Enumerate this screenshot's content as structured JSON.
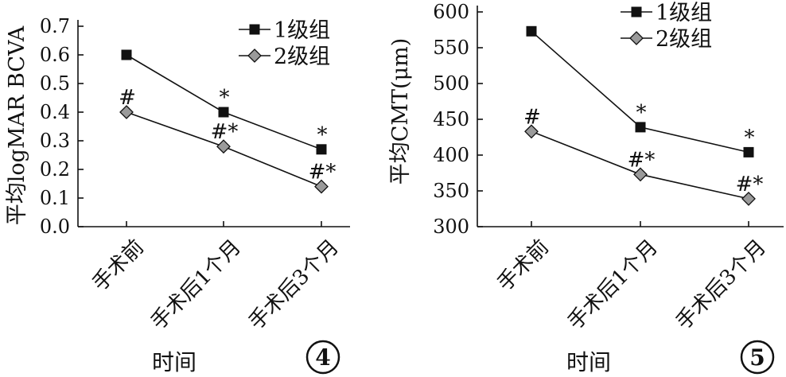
{
  "charts": [
    {
      "panel_label": "4",
      "chart_data": {
        "type": "line",
        "categories": [
          "手术前",
          "手术后1个月",
          "手术后3个月"
        ],
        "series": [
          {
            "name": "1级组",
            "values": [
              0.6,
              0.4,
              0.27
            ],
            "marker": "square",
            "color": "#111111",
            "annotations": [
              "",
              "*",
              "*"
            ]
          },
          {
            "name": "2级组",
            "values": [
              0.4,
              0.28,
              0.14
            ],
            "marker": "diamond",
            "color": "#9a9a9a",
            "annotations": [
              "#",
              "#*",
              "#*"
            ]
          }
        ],
        "ylabel": "平均logMAR BCVA",
        "xlabel": "时间",
        "ylim": [
          0.0,
          0.7
        ],
        "yticks": [
          "0.0",
          "0.1",
          "0.2",
          "0.3",
          "0.4",
          "0.5",
          "0.6",
          "0.7"
        ],
        "legend_position": "top-right",
        "grid": false
      }
    },
    {
      "panel_label": "5",
      "chart_data": {
        "type": "line",
        "categories": [
          "手术前",
          "手术后1个月",
          "手术后3个月"
        ],
        "series": [
          {
            "name": "1级组",
            "values": [
              573,
              439,
              404
            ],
            "marker": "square",
            "color": "#111111",
            "annotations": [
              "",
              "*",
              "*"
            ]
          },
          {
            "name": "2级组",
            "values": [
              433,
              373,
              339
            ],
            "marker": "diamond",
            "color": "#9a9a9a",
            "annotations": [
              "#",
              "#*",
              "#*"
            ]
          }
        ],
        "ylabel": "平均CMT(μm)",
        "xlabel": "时间",
        "ylim": [
          300,
          600
        ],
        "yticks": [
          "300",
          "350",
          "400",
          "450",
          "500",
          "550",
          "600"
        ],
        "legend_position": "top-right",
        "grid": false
      }
    }
  ]
}
